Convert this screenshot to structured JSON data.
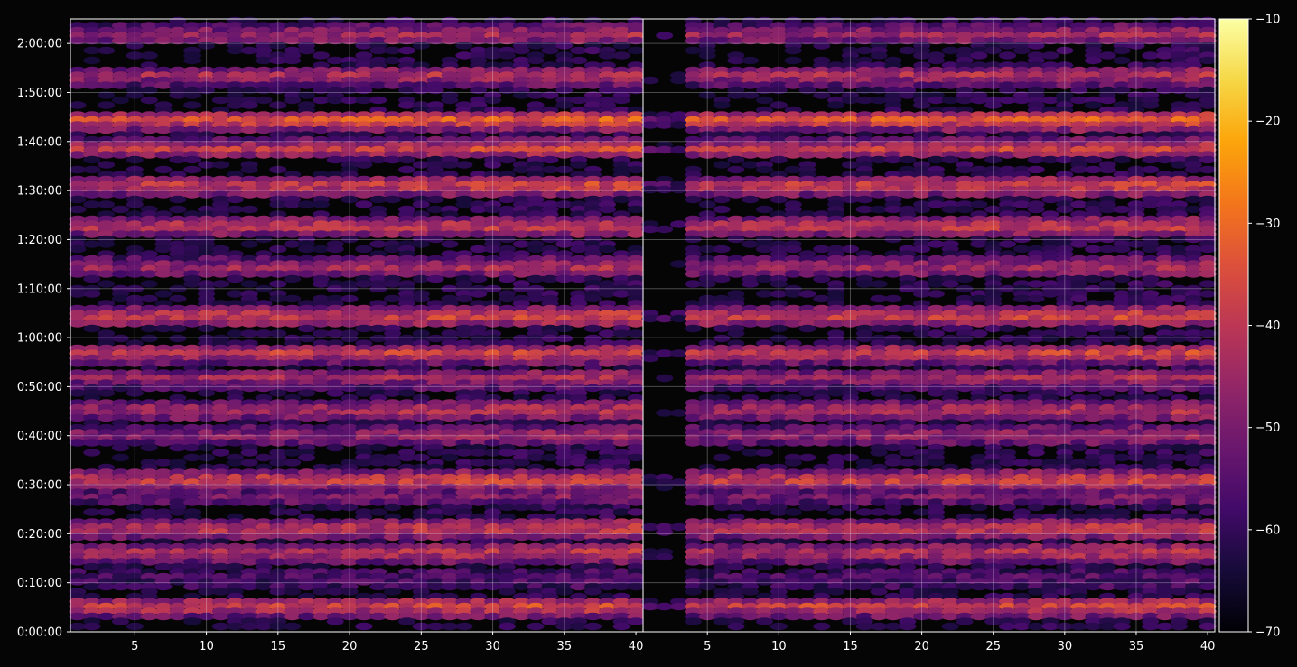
{
  "chart_data": {
    "type": "heatmap",
    "title": "",
    "xlabel": "",
    "ylabel": "",
    "panels": [
      {
        "name": "",
        "xlim": [
          1,
          40
        ],
        "x_ticks": [
          5,
          10,
          15,
          20,
          25,
          30,
          35,
          40
        ]
      },
      {
        "name": "",
        "xlim": [
          1,
          40
        ],
        "x_ticks": [
          5,
          10,
          15,
          20,
          25,
          30,
          35,
          40
        ]
      }
    ],
    "y_axis": {
      "unit": "time (h:mm:ss)",
      "range_seconds": [
        0,
        7500
      ],
      "ticks": [
        {
          "seconds": 0,
          "label": "0:00:00"
        },
        {
          "seconds": 600,
          "label": "0:10:00"
        },
        {
          "seconds": 1200,
          "label": "0:20:00"
        },
        {
          "seconds": 1800,
          "label": "0:30:00"
        },
        {
          "seconds": 2400,
          "label": "0:40:00"
        },
        {
          "seconds": 3000,
          "label": "0:50:00"
        },
        {
          "seconds": 3600,
          "label": "1:00:00"
        },
        {
          "seconds": 4200,
          "label": "1:10:00"
        },
        {
          "seconds": 4800,
          "label": "1:20:00"
        },
        {
          "seconds": 5400,
          "label": "1:30:00"
        },
        {
          "seconds": 6000,
          "label": "1:40:00"
        },
        {
          "seconds": 6600,
          "label": "1:50:00"
        },
        {
          "seconds": 7200,
          "label": "2:00:00"
        }
      ]
    },
    "colorbar": {
      "colormap": "inferno",
      "range": [
        -70,
        -10
      ],
      "ticks": [
        -10,
        -20,
        -30,
        -40,
        -50,
        -60,
        -70
      ],
      "tick_labels": [
        "−10",
        "−20",
        "−30",
        "−40",
        "−50",
        "−60",
        "−70"
      ]
    },
    "grid": true,
    "background": "#050505",
    "band_levels_db": [
      {
        "seconds": 300,
        "level": -38
      },
      {
        "seconds": 650,
        "level": -58
      },
      {
        "seconds": 960,
        "level": -42
      },
      {
        "seconds": 1250,
        "level": -40
      },
      {
        "seconds": 1650,
        "level": -52
      },
      {
        "seconds": 1850,
        "level": -38
      },
      {
        "seconds": 2400,
        "level": -48
      },
      {
        "seconds": 2700,
        "level": -44
      },
      {
        "seconds": 3100,
        "level": -46
      },
      {
        "seconds": 3400,
        "level": -40
      },
      {
        "seconds": 3850,
        "level": -38
      },
      {
        "seconds": 4450,
        "level": -46
      },
      {
        "seconds": 4950,
        "level": -40
      },
      {
        "seconds": 5450,
        "level": -38
      },
      {
        "seconds": 5900,
        "level": -40
      },
      {
        "seconds": 6250,
        "level": -34
      },
      {
        "seconds": 6800,
        "level": -44
      },
      {
        "seconds": 7300,
        "level": -46
      }
    ]
  }
}
